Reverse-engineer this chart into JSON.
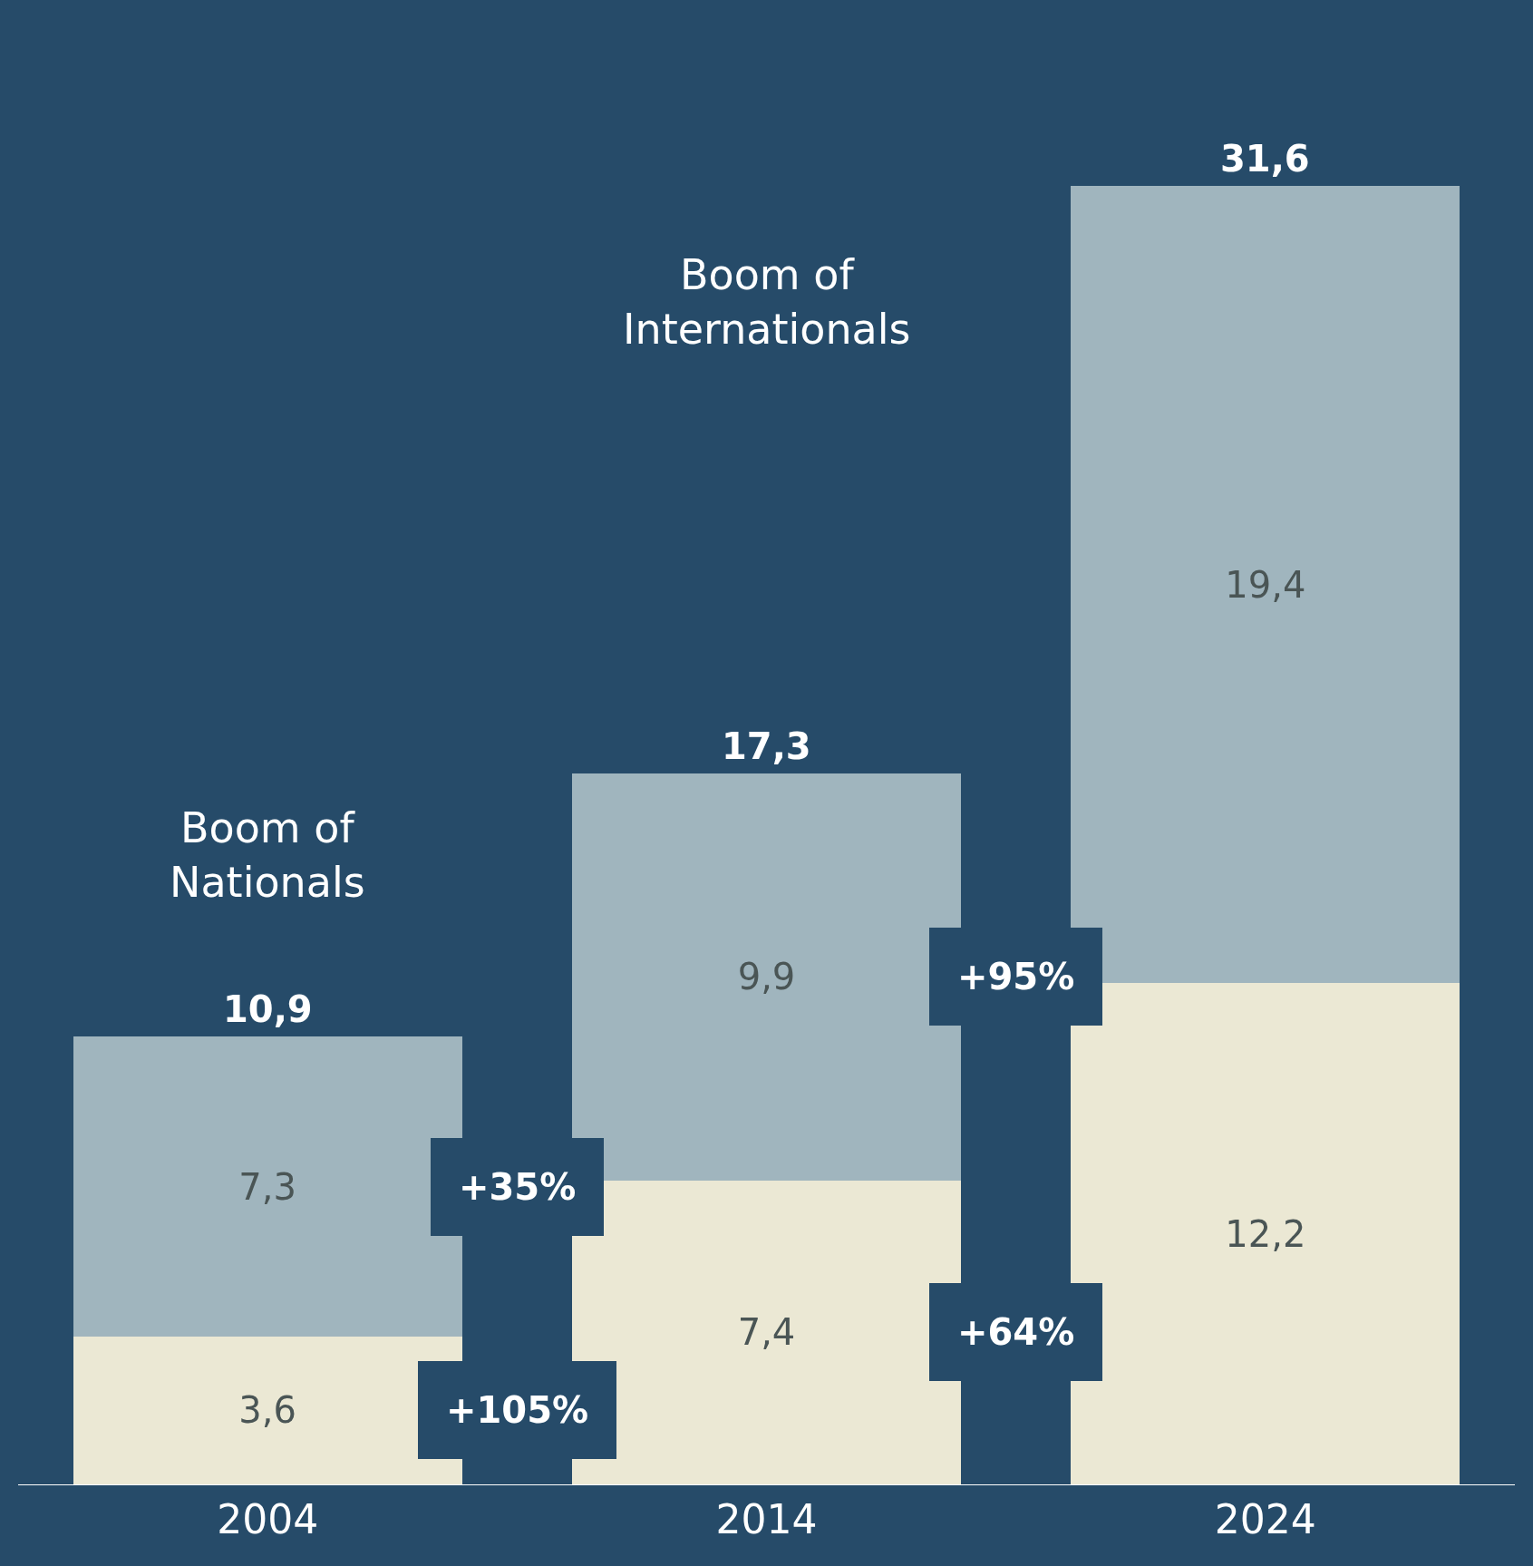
{
  "chart_data": {
    "type": "bar",
    "stacked": true,
    "categories": [
      "2004",
      "2014",
      "2024"
    ],
    "series": [
      {
        "color": "#ebe8d4",
        "values": [
          3.6,
          7.4,
          12.2
        ],
        "value_labels": [
          "3,6",
          "7,4",
          "12,2"
        ]
      },
      {
        "color": "#a0b5be",
        "values": [
          7.3,
          9.9,
          19.4
        ],
        "value_labels": [
          "7,3",
          "9,9",
          "19,4"
        ]
      }
    ],
    "totals": [
      "10,9",
      "17,3",
      "31,6"
    ],
    "annotations": [
      "Boom of Nationals",
      "Boom of Internationals",
      "+105%",
      "+35%",
      "+64%",
      "+95%"
    ],
    "grid": false,
    "tick_labels": "x"
  }
}
